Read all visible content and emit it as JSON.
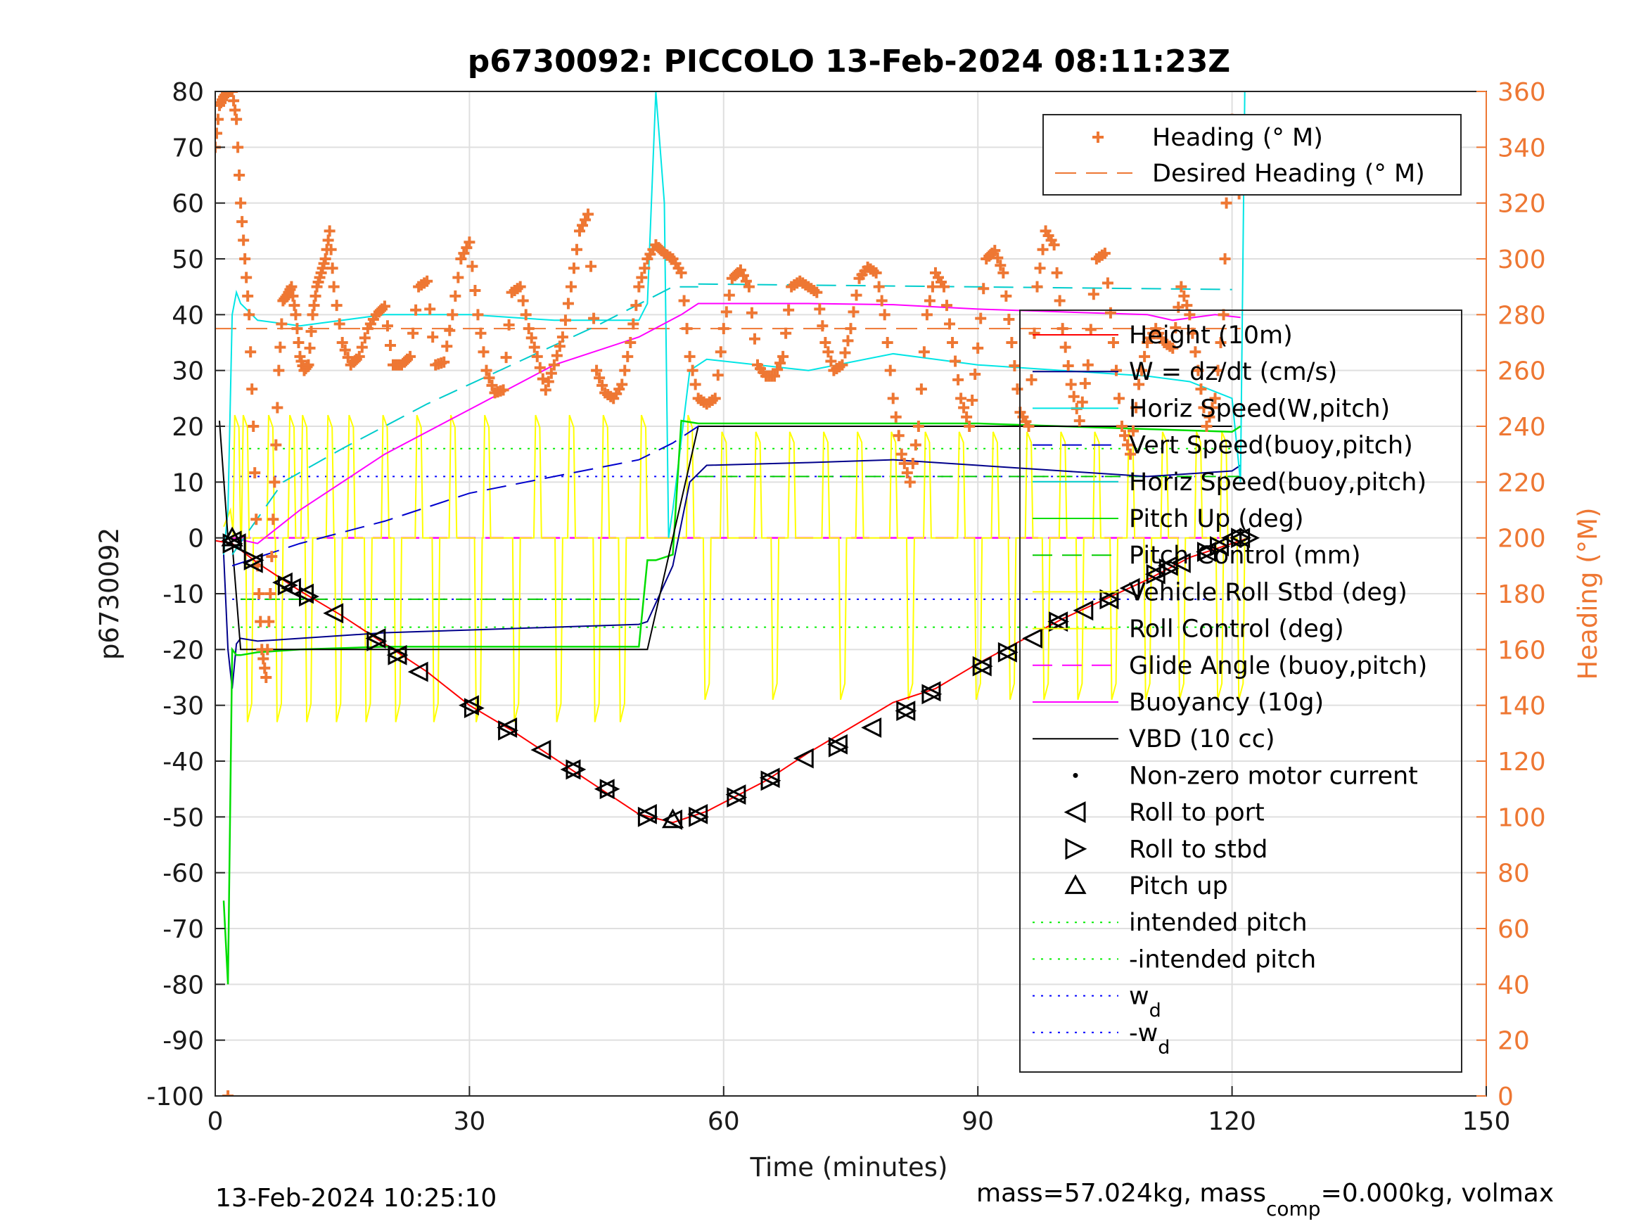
{
  "chart_data": {
    "type": "line",
    "title": "p6730092: PICCOLO 13-Feb-2024 08:11:23Z",
    "xlabel": "Time (minutes)",
    "ylabel": "p6730092",
    "y2label": "Heading (°M)",
    "xlim": [
      0,
      150
    ],
    "ylim": [
      -100,
      80
    ],
    "y2lim": [
      0,
      360
    ],
    "xticks": [
      "0",
      "30",
      "60",
      "90",
      "120",
      "150"
    ],
    "yticks": [
      "80",
      "70",
      "60",
      "50",
      "40",
      "30",
      "20",
      "10",
      "0",
      "-10",
      "-20",
      "-30",
      "-40",
      "-50",
      "-60",
      "-70",
      "-80",
      "-90",
      "-100"
    ],
    "y2ticks": [
      "360",
      "340",
      "320",
      "300",
      "280",
      "260",
      "240",
      "220",
      "200",
      "180",
      "160",
      "140",
      "120",
      "100",
      "80",
      "60",
      "40",
      "20",
      "0"
    ],
    "grid": true,
    "colors": {
      "heading": "#ee7733",
      "height": "#ff0000",
      "w": "#00008b",
      "horiz_w": "#00e5e5",
      "vert_buoy": "#0000cd",
      "horiz_buoy": "#00cccc",
      "pitch_up": "#00dd00",
      "pitch_control": "#00cc00",
      "roll": "#ffff00",
      "glide": "#ff00ff",
      "buoyancy": "#ff00ff",
      "vbd": "#000000",
      "intended": "#00ee00",
      "wd": "#0000ff"
    },
    "legend_heading": [
      "Heading (° M)",
      "Desired Heading (° M)"
    ],
    "legend_main": [
      "Height (10m)",
      "W = dz/dt (cm/s)",
      "Horiz Speed(W,pitch)",
      "Vert Speed(buoy,pitch)",
      "Horiz Speed(buoy,pitch)",
      "Pitch Up (deg)",
      "Pitch Control (mm)",
      "Vehicle Roll Stbd (deg)",
      "Roll Control (deg)",
      "Glide Angle (buoy,pitch)",
      "Buoyancy (10g)",
      "VBD (10 cc)",
      "Non-zero motor current",
      "Roll to port",
      "Roll to stbd",
      "Pitch up",
      "intended pitch",
      "-intended pitch",
      "w",
      "-w"
    ],
    "legend_sub": "d",
    "series": [
      {
        "key": "height",
        "x": [
          0,
          2,
          5,
          10,
          15,
          20,
          25,
          30,
          35,
          40,
          45,
          50,
          54,
          58,
          65,
          70,
          75,
          80,
          85,
          90,
          95,
          100,
          105,
          110,
          115,
          120,
          122
        ],
        "y": [
          -0.5,
          -1,
          -4.5,
          -9.5,
          -14,
          -19,
          -24,
          -30,
          -34.5,
          -39.5,
          -44.5,
          -49.5,
          -51,
          -49,
          -43.5,
          -38.5,
          -34,
          -29.5,
          -27,
          -22.5,
          -18.5,
          -14.5,
          -11,
          -7.5,
          -3.5,
          -1,
          0
        ]
      },
      {
        "key": "w",
        "x": [
          1,
          1.5,
          2,
          2.5,
          3,
          5,
          10,
          20,
          30,
          40,
          50,
          51,
          54,
          56,
          58,
          70,
          80,
          90,
          100,
          110,
          120,
          121
        ],
        "y": [
          -3,
          -20,
          -27,
          -19,
          -18,
          -18.5,
          -18,
          -17,
          -16.5,
          -16,
          -15.5,
          -15,
          -5,
          10,
          13,
          13.5,
          14,
          13,
          12,
          11,
          12,
          13
        ]
      },
      {
        "key": "horiz_w",
        "x": [
          1,
          1.5,
          2,
          2.5,
          3,
          5,
          10,
          20,
          30,
          40,
          50,
          51,
          52,
          53,
          53.5,
          54,
          56,
          58,
          70,
          80,
          90,
          100,
          110,
          115,
          120,
          121,
          121.5
        ],
        "y": [
          -3,
          5,
          40,
          44,
          42,
          39,
          38,
          40,
          40,
          39,
          39,
          42,
          80,
          60,
          0,
          5,
          30,
          32,
          30,
          33,
          31,
          30,
          29,
          28,
          25,
          10,
          80
        ]
      },
      {
        "key": "pitch_up",
        "x": [
          1,
          1.5,
          2,
          2.5,
          3,
          5,
          10,
          20,
          30,
          40,
          50,
          51,
          52,
          54,
          55,
          57,
          70,
          90,
          110,
          120,
          121
        ],
        "y": [
          -65,
          -80,
          -20,
          -21,
          -21,
          -20.5,
          -20,
          -19.5,
          -19.5,
          -19.5,
          -19.5,
          -4,
          -4,
          -3,
          21,
          20.5,
          20.5,
          20.5,
          19.5,
          19,
          20
        ]
      },
      {
        "key": "vbd",
        "x": [
          0.5,
          1.5,
          2,
          3,
          50,
          51,
          54,
          57,
          60,
          90,
          110,
          120
        ],
        "y": [
          21,
          0,
          -1,
          -20,
          -20,
          -20,
          0,
          20,
          20,
          20,
          20,
          20
        ]
      },
      {
        "key": "buoyancy",
        "x": [
          2,
          5,
          10,
          20,
          30,
          40,
          50,
          55,
          57,
          70,
          80,
          90,
          100,
          110,
          113,
          118,
          121
        ],
        "y": [
          0,
          -1,
          5,
          15,
          23,
          31,
          36,
          40,
          42,
          42,
          41.8,
          41,
          40.5,
          40,
          39,
          40,
          39.5
        ]
      },
      {
        "key": "vert_buoy",
        "x": [
          2,
          10,
          20,
          30,
          40,
          50,
          54,
          57
        ],
        "y": [
          -5,
          -1,
          3,
          8,
          11,
          14,
          17,
          20
        ]
      },
      {
        "key": "horiz_buoy",
        "x": [
          2,
          8,
          15,
          25,
          35,
          45,
          54,
          57
        ],
        "y": [
          -3,
          10,
          16,
          24,
          31,
          38,
          45,
          45
        ]
      },
      {
        "key": "horiz_buoy_flat",
        "x": [
          57,
          120
        ],
        "y": [
          45.5,
          44.5
        ]
      }
    ],
    "heading": {
      "desired": 275,
      "points": [
        [
          0,
          340
        ],
        [
          0.5,
          355
        ],
        [
          1,
          358
        ],
        [
          1.5,
          360
        ],
        [
          2,
          360
        ],
        [
          2.5,
          350
        ],
        [
          3,
          320
        ],
        [
          3.5,
          300
        ],
        [
          4,
          280
        ],
        [
          4.5,
          240
        ],
        [
          5,
          190
        ],
        [
          5.5,
          160
        ],
        [
          6,
          150
        ],
        [
          6.5,
          180
        ],
        [
          7,
          220
        ],
        [
          7.5,
          260
        ],
        [
          8,
          285
        ],
        [
          8.5,
          287
        ],
        [
          9,
          290
        ],
        [
          9.5,
          280
        ],
        [
          10,
          265
        ],
        [
          10.5,
          260
        ],
        [
          11,
          262
        ],
        [
          11.5,
          280
        ],
        [
          12,
          290
        ],
        [
          12.5,
          295
        ],
        [
          13,
          300
        ],
        [
          13.5,
          310
        ],
        [
          14,
          290
        ],
        [
          15,
          270
        ],
        [
          16,
          262
        ],
        [
          17,
          265
        ],
        [
          18,
          275
        ],
        [
          19,
          280
        ],
        [
          20,
          283
        ],
        [
          21,
          262
        ],
        [
          22,
          262
        ],
        [
          23,
          265
        ],
        [
          24,
          290
        ],
        [
          25,
          292
        ],
        [
          26,
          262
        ],
        [
          27,
          263
        ],
        [
          28,
          280
        ],
        [
          29,
          300
        ],
        [
          30,
          306
        ],
        [
          31,
          280
        ],
        [
          32,
          260
        ],
        [
          33,
          252
        ],
        [
          34,
          253
        ],
        [
          35,
          288
        ],
        [
          36,
          290
        ],
        [
          37,
          275
        ],
        [
          38,
          265
        ],
        [
          39,
          253
        ],
        [
          40,
          262
        ],
        [
          41,
          272
        ],
        [
          42,
          290
        ],
        [
          43,
          310
        ],
        [
          44,
          316
        ],
        [
          45,
          260
        ],
        [
          46,
          252
        ],
        [
          47,
          250
        ],
        [
          48,
          255
        ],
        [
          49,
          270
        ],
        [
          50,
          290
        ],
        [
          51,
          300
        ],
        [
          52,
          305
        ],
        [
          53,
          302
        ],
        [
          54,
          300
        ],
        [
          55,
          295
        ],
        [
          56,
          265
        ],
        [
          57,
          250
        ],
        [
          58,
          248
        ],
        [
          59,
          250
        ],
        [
          60,
          275
        ],
        [
          61,
          293
        ],
        [
          62,
          296
        ],
        [
          63,
          290
        ],
        [
          64,
          262
        ],
        [
          65,
          258
        ],
        [
          66,
          258
        ],
        [
          67,
          265
        ],
        [
          68,
          290
        ],
        [
          69,
          292
        ],
        [
          70,
          290
        ],
        [
          71,
          288
        ],
        [
          72,
          270
        ],
        [
          73,
          260
        ],
        [
          74,
          262
        ],
        [
          75,
          275
        ],
        [
          76,
          293
        ],
        [
          77,
          297
        ],
        [
          78,
          295
        ],
        [
          79,
          280
        ],
        [
          80,
          250
        ],
        [
          81,
          230
        ],
        [
          82,
          220
        ],
        [
          83,
          240
        ],
        [
          84,
          280
        ],
        [
          85,
          295
        ],
        [
          86,
          290
        ],
        [
          87,
          270
        ],
        [
          88,
          250
        ],
        [
          89,
          240
        ],
        [
          90,
          268
        ],
        [
          91,
          300
        ],
        [
          92,
          303
        ],
        [
          93,
          295
        ],
        [
          94,
          270
        ],
        [
          95,
          245
        ],
        [
          96,
          240
        ],
        [
          97,
          290
        ],
        [
          98,
          310
        ],
        [
          99,
          305
        ],
        [
          100,
          275
        ],
        [
          101,
          255
        ],
        [
          102,
          242
        ],
        [
          103,
          262
        ],
        [
          104,
          300
        ],
        [
          105,
          302
        ],
        [
          106,
          270
        ],
        [
          107,
          240
        ],
        [
          108,
          230
        ],
        [
          109,
          255
        ],
        [
          110,
          270
        ],
        [
          111,
          275
        ],
        [
          112,
          270
        ],
        [
          113,
          268
        ],
        [
          114,
          290
        ],
        [
          115,
          280
        ],
        [
          116,
          260
        ],
        [
          117,
          240
        ],
        [
          118,
          250
        ],
        [
          119,
          280
        ],
        [
          119.5,
          340
        ],
        [
          120,
          350
        ],
        [
          120.5,
          340
        ],
        [
          121,
          315
        ]
      ],
      "outliers": [
        [
          1.5,
          0
        ]
      ]
    },
    "markers": {
      "roll_port": [
        [
          2,
          -0.5
        ],
        [
          2.5,
          -1
        ],
        [
          4.5,
          -4.5
        ],
        [
          8,
          -8
        ],
        [
          9,
          -9
        ],
        [
          10.5,
          -10
        ],
        [
          14,
          -13.5
        ],
        [
          19,
          -18
        ],
        [
          21.5,
          -21
        ],
        [
          24,
          -24
        ],
        [
          30,
          -30
        ],
        [
          34.5,
          -34
        ],
        [
          38.5,
          -38
        ],
        [
          42,
          -41.5
        ],
        [
          46,
          -45
        ],
        [
          51,
          -49.5
        ],
        [
          54,
          -50.5
        ],
        [
          57,
          -49.5
        ],
        [
          61.5,
          -46
        ],
        [
          65.5,
          -43
        ],
        [
          69.5,
          -39.5
        ],
        [
          73.5,
          -37
        ],
        [
          77.5,
          -34
        ],
        [
          81.5,
          -31
        ],
        [
          84.5,
          -27.5
        ],
        [
          90.5,
          -23
        ],
        [
          93.5,
          -20.5
        ],
        [
          96.5,
          -18
        ],
        [
          99.5,
          -15
        ],
        [
          102.5,
          -13
        ],
        [
          105.5,
          -11
        ],
        [
          108,
          -9
        ],
        [
          111,
          -6.5
        ],
        [
          112.5,
          -5
        ],
        [
          114,
          -4.5
        ],
        [
          117,
          -2.5
        ],
        [
          118.5,
          -1.5
        ],
        [
          120,
          0
        ],
        [
          121,
          0
        ]
      ],
      "roll_stbd": [
        [
          2,
          -1
        ],
        [
          4.5,
          -4
        ],
        [
          8.5,
          -8.5
        ],
        [
          11,
          -10.5
        ],
        [
          19,
          -18.5
        ],
        [
          21.5,
          -21
        ],
        [
          30.5,
          -30.5
        ],
        [
          34.5,
          -34.5
        ],
        [
          42.5,
          -41.5
        ],
        [
          46.5,
          -45
        ],
        [
          51,
          -50
        ],
        [
          57,
          -50
        ],
        [
          61.5,
          -46.5
        ],
        [
          65.5,
          -43.5
        ],
        [
          73.5,
          -37.5
        ],
        [
          81.5,
          -31
        ],
        [
          84.5,
          -28
        ],
        [
          90.5,
          -23
        ],
        [
          93.5,
          -20.5
        ],
        [
          99.5,
          -15
        ],
        [
          105.5,
          -11
        ],
        [
          111,
          -6.5
        ],
        [
          112.5,
          -5.5
        ],
        [
          117,
          -2.5
        ],
        [
          118.5,
          -1.5
        ],
        [
          121,
          0
        ],
        [
          122,
          0
        ]
      ],
      "pitch_up": [
        [
          2,
          0
        ],
        [
          54,
          -50.5
        ]
      ]
    },
    "refs": {
      "intended": 16,
      "neg_intended": -16,
      "wd": 11,
      "neg_wd": -11,
      "pitch_control_line": -11,
      "glide_zero": 0
    }
  },
  "footer": {
    "date": "13-Feb-2024 10:25:10",
    "mass_pre": "mass=57.024kg, mass",
    "mass_sub": "comp",
    "mass_post": "=0.000kg, volmax"
  }
}
